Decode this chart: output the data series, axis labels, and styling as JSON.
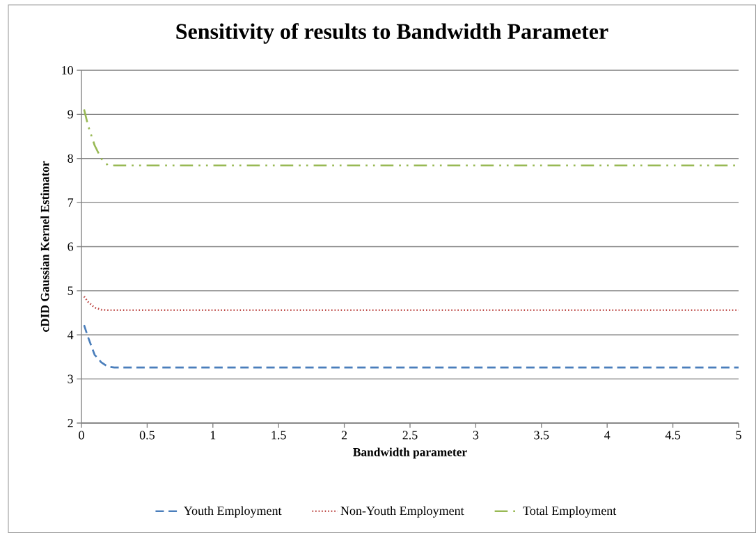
{
  "chart_data": {
    "type": "line",
    "title": "Sensitivity of  results to Bandwidth Parameter",
    "xlabel": "Bandwidth parameter",
    "ylabel": "cDID Gaussian Kernel Estimator",
    "xlim": [
      0,
      5
    ],
    "ylim": [
      2,
      10
    ],
    "xticks": [
      0,
      0.5,
      1,
      1.5,
      2,
      2.5,
      3,
      3.5,
      4,
      4.5,
      5
    ],
    "yticks": [
      2,
      3,
      4,
      5,
      6,
      7,
      8,
      9,
      10
    ],
    "grid": "y",
    "legend": "bottom",
    "marker": "none",
    "series": [
      {
        "name": "Youth Employment",
        "color": "#4a7ebb",
        "line_style": "dashed",
        "x": [
          0.02,
          0.05,
          0.1,
          0.15,
          0.2,
          0.25,
          5
        ],
        "values": [
          4.22,
          3.95,
          3.55,
          3.38,
          3.28,
          3.26,
          3.26
        ]
      },
      {
        "name": "Non-Youth Employment",
        "color": "#be4b48",
        "line_style": "dotted",
        "x": [
          0.02,
          0.05,
          0.1,
          0.15,
          0.2,
          5
        ],
        "values": [
          4.87,
          4.75,
          4.62,
          4.57,
          4.56,
          4.56
        ]
      },
      {
        "name": "Total Employment",
        "color": "#98b954",
        "line_style": "dashdot",
        "x": [
          0.02,
          0.05,
          0.1,
          0.15,
          0.2,
          0.25,
          5
        ],
        "values": [
          9.11,
          8.75,
          8.3,
          8.0,
          7.85,
          7.84,
          7.84
        ]
      }
    ]
  }
}
